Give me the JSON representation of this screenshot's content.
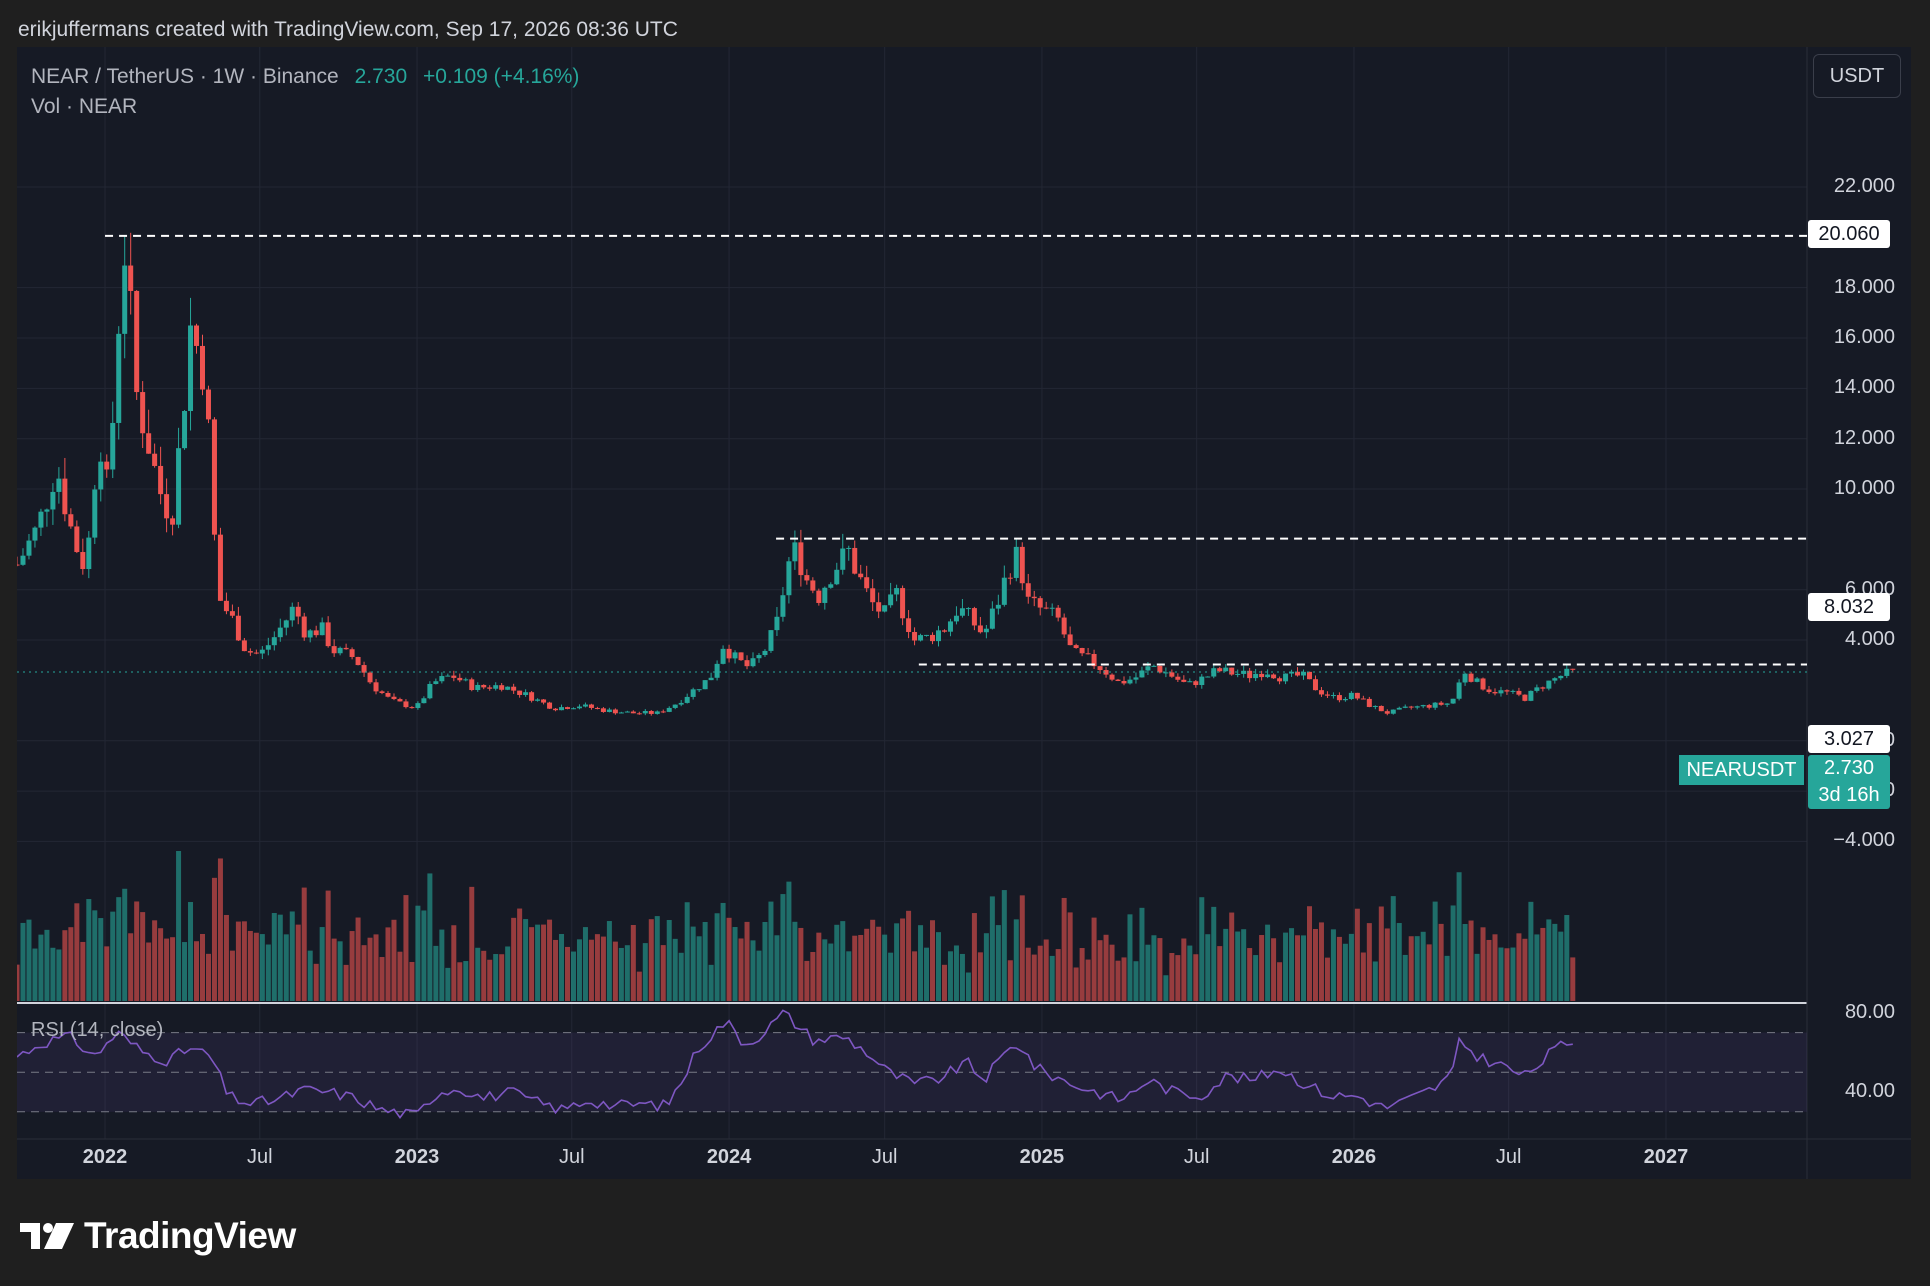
{
  "header": {
    "caption": "erikjuffermans created with TradingView.com, Sep 17, 2026 08:36 UTC"
  },
  "legend": {
    "symbol": "NEAR / TetherUS · 1W · Binance",
    "last": "2.730",
    "change": "+0.109 (+4.16%)",
    "volume": "Vol · NEAR",
    "rsi": "RSI (14, close)"
  },
  "toolbar": {
    "currency": "USDT"
  },
  "tags": {
    "symbol": "NEARUSDT",
    "last_price": "2.730",
    "countdown": "3d 16h",
    "levels": [
      "20.060",
      "8.032",
      "3.027"
    ]
  },
  "brand": {
    "name": "TradingView"
  },
  "colors": {
    "up": "#26a69a",
    "down": "#ef5350",
    "rsi": "#7e57c2",
    "background": "#161a25"
  },
  "chart_data": {
    "type": "candlestick",
    "symbol": "NEARUSDT",
    "timeframe": "1W",
    "exchange": "Binance",
    "y_ticks": [
      22,
      18,
      16,
      14,
      12,
      10,
      6,
      4,
      0,
      -2,
      -4
    ],
    "y_tick_labels": [
      "22.000",
      "18.000",
      "16.000",
      "14.000",
      "12.000",
      "10.000",
      "6.000",
      "4.000",
      "0.000",
      "−2.000",
      "−4.000"
    ],
    "ylim": [
      -4.5,
      24
    ],
    "x_ticks": [
      {
        "label": "2022",
        "date": "2022-01-01",
        "year": true
      },
      {
        "label": "Jul",
        "date": "2022-07-01",
        "year": false
      },
      {
        "label": "2023",
        "date": "2023-01-01",
        "year": true
      },
      {
        "label": "Jul",
        "date": "2023-07-01",
        "year": false
      },
      {
        "label": "2024",
        "date": "2024-01-01",
        "year": true
      },
      {
        "label": "Jul",
        "date": "2024-07-01",
        "year": false
      },
      {
        "label": "2025",
        "date": "2025-01-01",
        "year": true
      },
      {
        "label": "Jul",
        "date": "2025-07-01",
        "year": false
      },
      {
        "label": "2026",
        "date": "2026-01-01",
        "year": true
      },
      {
        "label": "Jul",
        "date": "2026-07-01",
        "year": false
      },
      {
        "label": "2027",
        "date": "2027-01-01",
        "year": true
      }
    ],
    "xlim": [
      "2021-09-20",
      "2027-06-15"
    ],
    "horizontal_levels": [
      {
        "value": 20.06,
        "from": "2022-01-01"
      },
      {
        "value": 8.032,
        "from": "2024-02-25"
      },
      {
        "value": 3.027,
        "from": "2024-08-10"
      }
    ],
    "last_price": 2.73,
    "price_series": {
      "name": "NEARUSDT",
      "points": [
        [
          "2021-09-20",
          7.0
        ],
        [
          "2021-10-15",
          8.5
        ],
        [
          "2021-11-05",
          11.0
        ],
        [
          "2021-11-25",
          8.0
        ],
        [
          "2021-12-10",
          6.8
        ],
        [
          "2021-12-25",
          12.5
        ],
        [
          "2022-01-05",
          9.5
        ],
        [
          "2022-01-15",
          16.0
        ],
        [
          "2022-01-25",
          20.0
        ],
        [
          "2022-02-05",
          14.0
        ],
        [
          "2022-02-20",
          12.0
        ],
        [
          "2022-03-05",
          10.0
        ],
        [
          "2022-03-20",
          9.0
        ],
        [
          "2022-04-01",
          12.5
        ],
        [
          "2022-04-10",
          16.5
        ],
        [
          "2022-04-25",
          15.0
        ],
        [
          "2022-05-05",
          11.0
        ],
        [
          "2022-05-12",
          5.8
        ],
        [
          "2022-05-30",
          4.8
        ],
        [
          "2022-06-15",
          3.6
        ],
        [
          "2022-07-01",
          3.4
        ],
        [
          "2022-07-20",
          4.2
        ],
        [
          "2022-08-10",
          5.3
        ],
        [
          "2022-08-25",
          4.2
        ],
        [
          "2022-09-10",
          4.5
        ],
        [
          "2022-09-25",
          3.6
        ],
        [
          "2022-10-20",
          3.3
        ],
        [
          "2022-11-10",
          2.2
        ],
        [
          "2022-12-01",
          1.6
        ],
        [
          "2022-12-31",
          1.3
        ],
        [
          "2023-01-20",
          2.3
        ],
        [
          "2023-02-10",
          2.6
        ],
        [
          "2023-03-10",
          2.1
        ],
        [
          "2023-04-10",
          2.2
        ],
        [
          "2023-05-10",
          1.8
        ],
        [
          "2023-06-10",
          1.3
        ],
        [
          "2023-07-10",
          1.4
        ],
        [
          "2023-08-10",
          1.2
        ],
        [
          "2023-09-10",
          1.1
        ],
        [
          "2023-10-10",
          1.1
        ],
        [
          "2023-11-01",
          1.5
        ],
        [
          "2023-11-20",
          2.0
        ],
        [
          "2023-12-10",
          2.5
        ],
        [
          "2023-12-25",
          3.8
        ],
        [
          "2024-01-10",
          3.2
        ],
        [
          "2024-01-25",
          2.9
        ],
        [
          "2024-02-10",
          3.5
        ],
        [
          "2024-02-25",
          4.5
        ],
        [
          "2024-03-10",
          7.0
        ],
        [
          "2024-03-20",
          7.6
        ],
        [
          "2024-04-01",
          6.4
        ],
        [
          "2024-04-15",
          5.8
        ],
        [
          "2024-05-01",
          6.8
        ],
        [
          "2024-05-20",
          7.5
        ],
        [
          "2024-06-01",
          6.5
        ],
        [
          "2024-06-15",
          5.5
        ],
        [
          "2024-07-01",
          5.0
        ],
        [
          "2024-07-15",
          5.8
        ],
        [
          "2024-08-05",
          4.0
        ],
        [
          "2024-08-20",
          4.1
        ],
        [
          "2024-09-10",
          4.5
        ],
        [
          "2024-09-25",
          5.3
        ],
        [
          "2024-10-10",
          4.8
        ],
        [
          "2024-10-25",
          4.2
        ],
        [
          "2024-11-10",
          5.5
        ],
        [
          "2024-11-25",
          7.0
        ],
        [
          "2024-12-05",
          7.4
        ],
        [
          "2024-12-15",
          5.5
        ],
        [
          "2025-01-01",
          5.2
        ],
        [
          "2025-01-20",
          4.8
        ],
        [
          "2025-02-05",
          3.5
        ],
        [
          "2025-02-25",
          3.2
        ],
        [
          "2025-03-15",
          2.8
        ],
        [
          "2025-04-01",
          2.3
        ],
        [
          "2025-04-20",
          2.5
        ],
        [
          "2025-05-10",
          3.0
        ],
        [
          "2025-06-01",
          2.6
        ],
        [
          "2025-06-20",
          2.2
        ],
        [
          "2025-07-10",
          2.5
        ],
        [
          "2025-07-25",
          2.8
        ],
        [
          "2025-08-10",
          2.7
        ],
        [
          "2025-09-01",
          2.6
        ],
        [
          "2025-09-20",
          2.8
        ],
        [
          "2025-10-10",
          2.5
        ],
        [
          "2025-11-01",
          2.6
        ],
        [
          "2025-11-20",
          2.0
        ],
        [
          "2025-12-10",
          1.7
        ],
        [
          "2025-12-31",
          1.8
        ],
        [
          "2026-01-20",
          1.4
        ],
        [
          "2026-02-10",
          1.1
        ],
        [
          "2026-03-05",
          1.3
        ],
        [
          "2026-04-01",
          1.4
        ],
        [
          "2026-04-25",
          1.5
        ],
        [
          "2026-05-10",
          2.8
        ],
        [
          "2026-05-25",
          2.3
        ],
        [
          "2026-06-10",
          2.0
        ],
        [
          "2026-07-01",
          1.9
        ],
        [
          "2026-07-20",
          1.7
        ],
        [
          "2026-08-10",
          2.2
        ],
        [
          "2026-09-01",
          2.6
        ],
        [
          "2026-09-14",
          2.73
        ]
      ]
    },
    "volume_series": {
      "name": "Vol · NEAR"
    },
    "rsi": {
      "name": "RSI (14, close)",
      "y_ticks": [
        80,
        40
      ],
      "y_tick_labels": [
        "80.00",
        "40.00"
      ],
      "band": [
        30,
        70
      ],
      "middle": 50,
      "ylim": [
        25,
        85
      ],
      "points": [
        [
          "2021-09-20",
          58
        ],
        [
          "2021-10-20",
          65
        ],
        [
          "2021-11-20",
          68
        ],
        [
          "2021-12-20",
          58
        ],
        [
          "2022-01-15",
          70
        ],
        [
          "2022-02-15",
          60
        ],
        [
          "2022-03-15",
          56
        ],
        [
          "2022-04-10",
          62
        ],
        [
          "2022-05-05",
          58
        ],
        [
          "2022-05-25",
          38
        ],
        [
          "2022-06-20",
          34
        ],
        [
          "2022-07-20",
          36
        ],
        [
          "2022-08-20",
          41
        ],
        [
          "2022-09-20",
          40
        ],
        [
          "2022-10-20",
          37
        ],
        [
          "2022-11-20",
          31
        ],
        [
          "2022-12-31",
          28
        ],
        [
          "2023-01-25",
          40
        ],
        [
          "2023-02-20",
          42
        ],
        [
          "2023-03-20",
          37
        ],
        [
          "2023-04-20",
          40
        ],
        [
          "2023-05-20",
          35
        ],
        [
          "2023-06-20",
          31
        ],
        [
          "2023-07-20",
          36
        ],
        [
          "2023-08-20",
          33
        ],
        [
          "2023-09-20",
          34
        ],
        [
          "2023-10-20",
          33
        ],
        [
          "2023-11-10",
          48
        ],
        [
          "2023-11-25",
          62
        ],
        [
          "2023-12-10",
          68
        ],
        [
          "2023-12-28",
          76
        ],
        [
          "2024-01-20",
          64
        ],
        [
          "2024-02-10",
          70
        ],
        [
          "2024-03-05",
          80
        ],
        [
          "2024-03-15",
          76
        ],
        [
          "2024-04-10",
          66
        ],
        [
          "2024-05-15",
          68
        ],
        [
          "2024-06-10",
          60
        ],
        [
          "2024-07-05",
          50
        ],
        [
          "2024-08-05",
          44
        ],
        [
          "2024-09-05",
          47
        ],
        [
          "2024-10-05",
          55
        ],
        [
          "2024-10-25",
          46
        ],
        [
          "2024-11-20",
          60
        ],
        [
          "2024-12-05",
          65
        ],
        [
          "2024-12-25",
          52
        ],
        [
          "2025-02-05",
          44
        ],
        [
          "2025-03-05",
          40
        ],
        [
          "2025-04-05",
          36
        ],
        [
          "2025-05-05",
          46
        ],
        [
          "2025-06-05",
          40
        ],
        [
          "2025-07-05",
          38
        ],
        [
          "2025-08-05",
          48
        ],
        [
          "2025-09-05",
          46
        ],
        [
          "2025-10-05",
          52
        ],
        [
          "2025-11-05",
          44
        ],
        [
          "2025-12-05",
          38
        ],
        [
          "2026-01-05",
          38
        ],
        [
          "2026-02-05",
          32
        ],
        [
          "2026-03-05",
          36
        ],
        [
          "2026-04-05",
          42
        ],
        [
          "2026-04-25",
          48
        ],
        [
          "2026-05-05",
          66
        ],
        [
          "2026-05-25",
          58
        ],
        [
          "2026-06-20",
          54
        ],
        [
          "2026-07-20",
          48
        ],
        [
          "2026-08-10",
          56
        ],
        [
          "2026-08-25",
          62
        ],
        [
          "2026-09-14",
          66
        ]
      ]
    }
  }
}
